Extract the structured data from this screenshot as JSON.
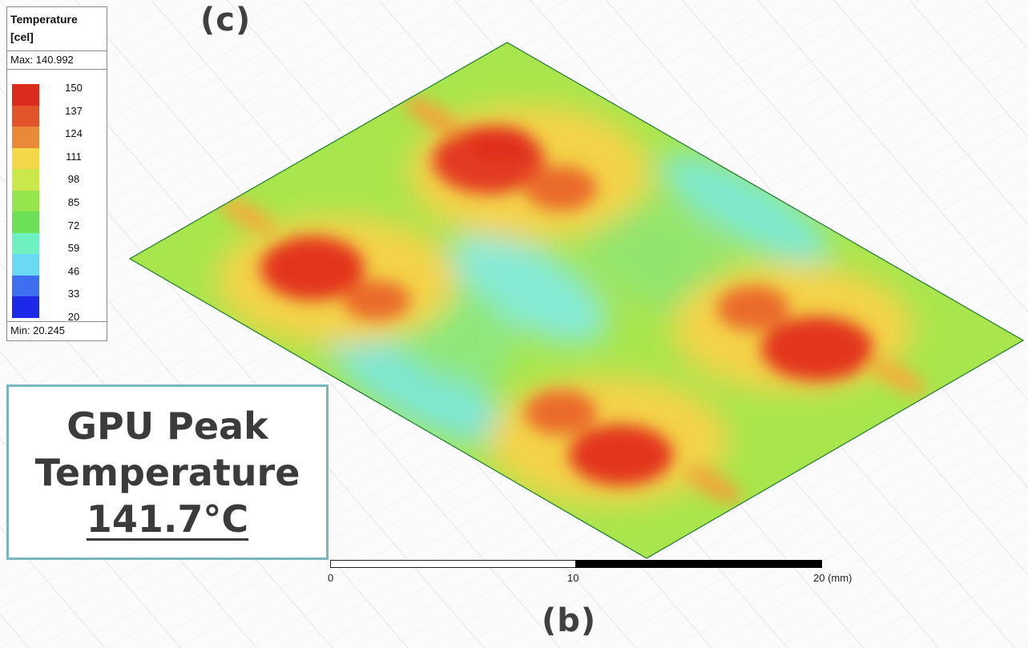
{
  "legend": {
    "title_line1": "Temperature",
    "title_line2": "[cel]",
    "max_label": "Max: 140.992",
    "min_label": "Min: 20.245",
    "ticks": [
      "150",
      "137",
      "124",
      "111",
      "98",
      "85",
      "72",
      "59",
      "46",
      "33",
      "20"
    ],
    "colors": [
      "#d92c1e",
      "#e3542a",
      "#e98a36",
      "#f3d948",
      "#cbe84a",
      "#97e54c",
      "#6ce156",
      "#6ff0c0",
      "#6ad9f3",
      "#3e6ff0",
      "#1c2ae8"
    ]
  },
  "labels": {
    "panel_top": "(c)",
    "panel_bottom": "(b)"
  },
  "peak": {
    "line1": "GPU Peak",
    "line2": "Temperature",
    "value": "141.7°C"
  },
  "scale": {
    "t0": "0",
    "t1": "10",
    "t2": "20 (mm)"
  },
  "colors": {
    "border_accent": "#78b7bd",
    "hot": "#e0321f",
    "warm": "#f0a53a",
    "mild": "#a8e84c",
    "cool": "#78e8d8"
  }
}
